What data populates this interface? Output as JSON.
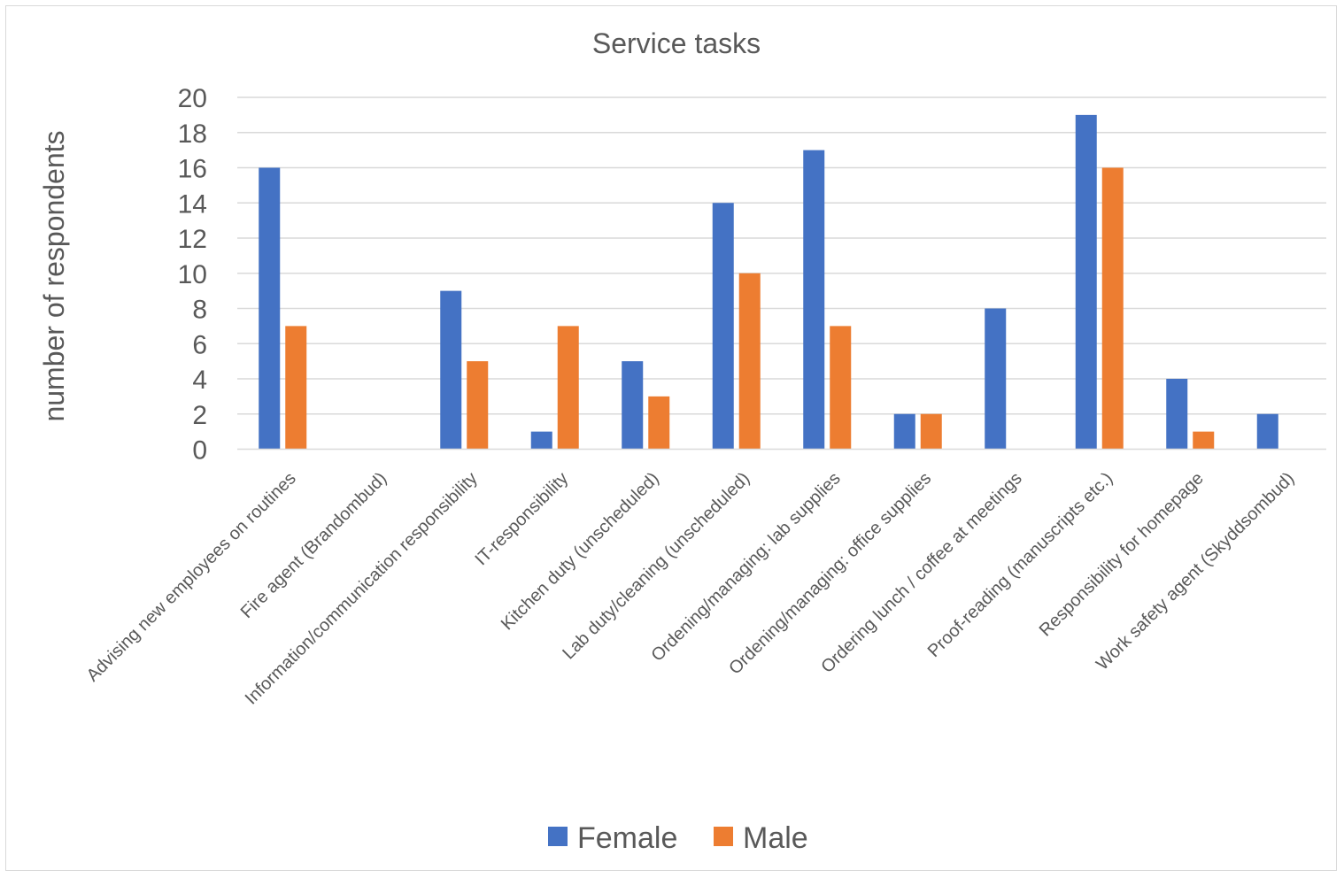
{
  "chart_data": {
    "type": "bar",
    "title": "Service tasks",
    "xlabel": "",
    "ylabel": "number of respondents",
    "ylim": [
      0,
      20
    ],
    "yticks": [
      0,
      2,
      4,
      6,
      8,
      10,
      12,
      14,
      16,
      18,
      20
    ],
    "grid": true,
    "legend_position": "bottom",
    "categories": [
      "Advising new employees on routines",
      "Fire agent (Brandombud)",
      "Information/communication responsibility",
      "IT-responsibility",
      "Kitchen duty (unscheduled)",
      "Lab duty/cleaning (unscheduled)",
      "Ordening/managing: lab supplies",
      "Ordening/managing: office supplies",
      "Ordering lunch / coffee at meetings",
      "Proof-reading (manuscripts etc.)",
      "Responsibility for homepage",
      "Work safety agent (Skyddsombud)"
    ],
    "series": [
      {
        "name": "Female",
        "color": "#4472C4",
        "values": [
          16,
          0,
          9,
          1,
          5,
          14,
          17,
          2,
          8,
          19,
          4,
          2
        ]
      },
      {
        "name": "Male",
        "color": "#ED7D31",
        "values": [
          7,
          0,
          5,
          7,
          3,
          10,
          7,
          2,
          0,
          16,
          1,
          0
        ]
      }
    ]
  }
}
